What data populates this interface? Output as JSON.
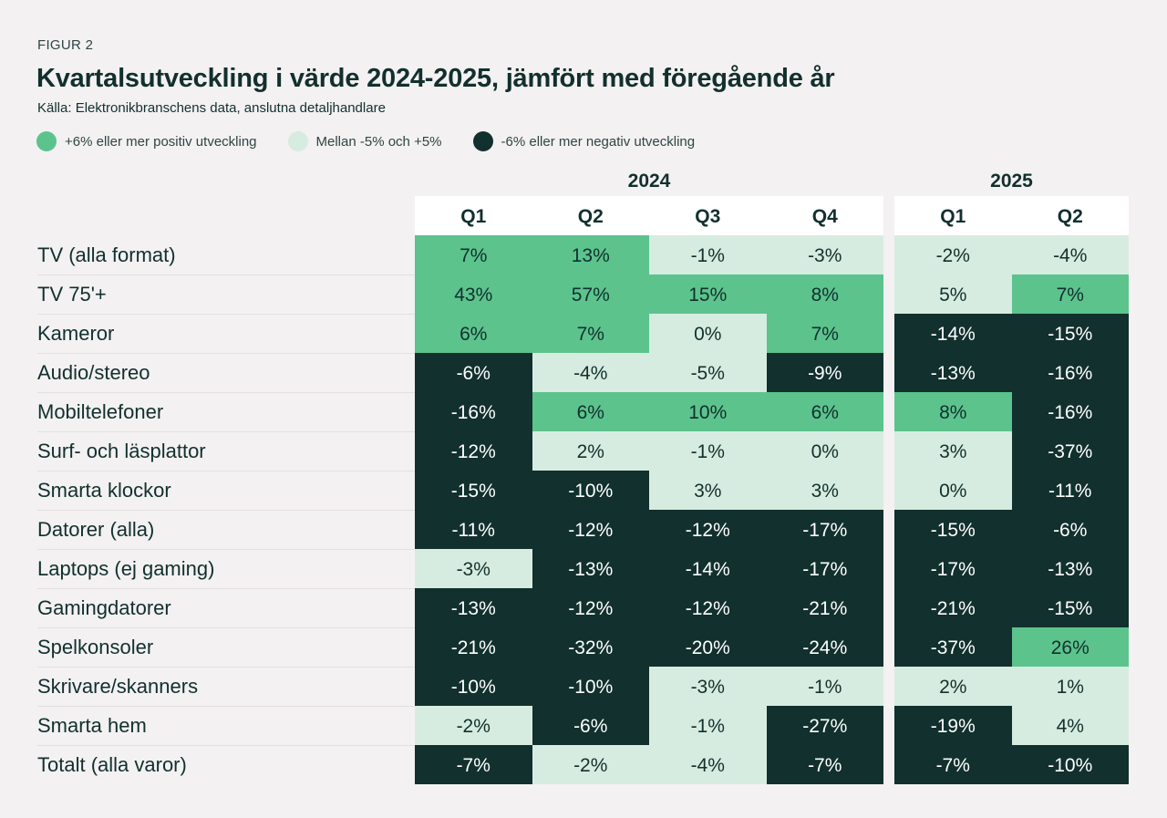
{
  "figure_label": "FIGUR 2",
  "colors": {
    "positive": "#5cc38d",
    "neutral": "#d7ece0",
    "negative": "#11302e"
  },
  "chart_data": {
    "type": "table",
    "title": "Kvartalsutveckling i värde 2024-2025, jämfört med föregående år",
    "subtitle": "Källa: Elektronikbranschens data, anslutna detaljhandlare",
    "legend": [
      {
        "category": "pos",
        "label": "+6% eller mer positiv utveckling"
      },
      {
        "category": "mid",
        "label": "Mellan -5% och +5%"
      },
      {
        "category": "neg",
        "label": "-6% eller mer negativ utveckling"
      }
    ],
    "years": [
      {
        "label": "2024",
        "quarters": [
          "Q1",
          "Q2",
          "Q3",
          "Q4"
        ]
      },
      {
        "label": "2025",
        "quarters": [
          "Q1",
          "Q2"
        ]
      }
    ],
    "rows": [
      {
        "label": "TV (alla format)",
        "values": [
          "7%",
          "13%",
          "-1%",
          "-3%",
          "-2%",
          "-4%"
        ],
        "cats": [
          "pos",
          "pos",
          "mid",
          "mid",
          "mid",
          "mid"
        ]
      },
      {
        "label": "TV 75'+",
        "values": [
          "43%",
          "57%",
          "15%",
          "8%",
          "5%",
          "7%"
        ],
        "cats": [
          "pos",
          "pos",
          "pos",
          "pos",
          "mid",
          "pos"
        ]
      },
      {
        "label": "Kameror",
        "values": [
          "6%",
          "7%",
          "0%",
          "7%",
          "-14%",
          "-15%"
        ],
        "cats": [
          "pos",
          "pos",
          "mid",
          "pos",
          "neg",
          "neg"
        ]
      },
      {
        "label": "Audio/stereo",
        "values": [
          "-6%",
          "-4%",
          "-5%",
          "-9%",
          "-13%",
          "-16%"
        ],
        "cats": [
          "neg",
          "mid",
          "mid",
          "neg",
          "neg",
          "neg"
        ]
      },
      {
        "label": "Mobiltelefoner",
        "values": [
          "-16%",
          "6%",
          "10%",
          "6%",
          "8%",
          "-16%"
        ],
        "cats": [
          "neg",
          "pos",
          "pos",
          "pos",
          "pos",
          "neg"
        ]
      },
      {
        "label": "Surf- och läsplattor",
        "values": [
          "-12%",
          "2%",
          "-1%",
          "0%",
          "3%",
          "-37%"
        ],
        "cats": [
          "neg",
          "mid",
          "mid",
          "mid",
          "mid",
          "neg"
        ]
      },
      {
        "label": "Smarta klockor",
        "values": [
          "-15%",
          "-10%",
          "3%",
          "3%",
          "0%",
          "-11%"
        ],
        "cats": [
          "neg",
          "neg",
          "mid",
          "mid",
          "mid",
          "neg"
        ]
      },
      {
        "label": "Datorer (alla)",
        "values": [
          "-11%",
          "-12%",
          "-12%",
          "-17%",
          "-15%",
          "-6%"
        ],
        "cats": [
          "neg",
          "neg",
          "neg",
          "neg",
          "neg",
          "neg"
        ]
      },
      {
        "label": "Laptops (ej gaming)",
        "values": [
          "-3%",
          "-13%",
          "-14%",
          "-17%",
          "-17%",
          "-13%"
        ],
        "cats": [
          "mid",
          "neg",
          "neg",
          "neg",
          "neg",
          "neg"
        ]
      },
      {
        "label": "Gamingdatorer",
        "values": [
          "-13%",
          "-12%",
          "-12%",
          "-21%",
          "-21%",
          "-15%"
        ],
        "cats": [
          "neg",
          "neg",
          "neg",
          "neg",
          "neg",
          "neg"
        ]
      },
      {
        "label": "Spelkonsoler",
        "values": [
          "-21%",
          "-32%",
          "-20%",
          "-24%",
          "-37%",
          "26%"
        ],
        "cats": [
          "neg",
          "neg",
          "neg",
          "neg",
          "neg",
          "pos"
        ]
      },
      {
        "label": "Skrivare/skanners",
        "values": [
          "-10%",
          "-10%",
          "-3%",
          "-1%",
          "2%",
          "1%"
        ],
        "cats": [
          "neg",
          "neg",
          "mid",
          "mid",
          "mid",
          "mid"
        ]
      },
      {
        "label": "Smarta hem",
        "values": [
          "-2%",
          "-6%",
          "-1%",
          "-27%",
          "-19%",
          "4%"
        ],
        "cats": [
          "mid",
          "neg",
          "mid",
          "neg",
          "neg",
          "mid"
        ]
      },
      {
        "label": "Totalt (alla varor)",
        "values": [
          "-7%",
          "-2%",
          "-4%",
          "-7%",
          "-7%",
          "-10%"
        ],
        "cats": [
          "neg",
          "mid",
          "mid",
          "neg",
          "neg",
          "neg"
        ]
      }
    ]
  }
}
